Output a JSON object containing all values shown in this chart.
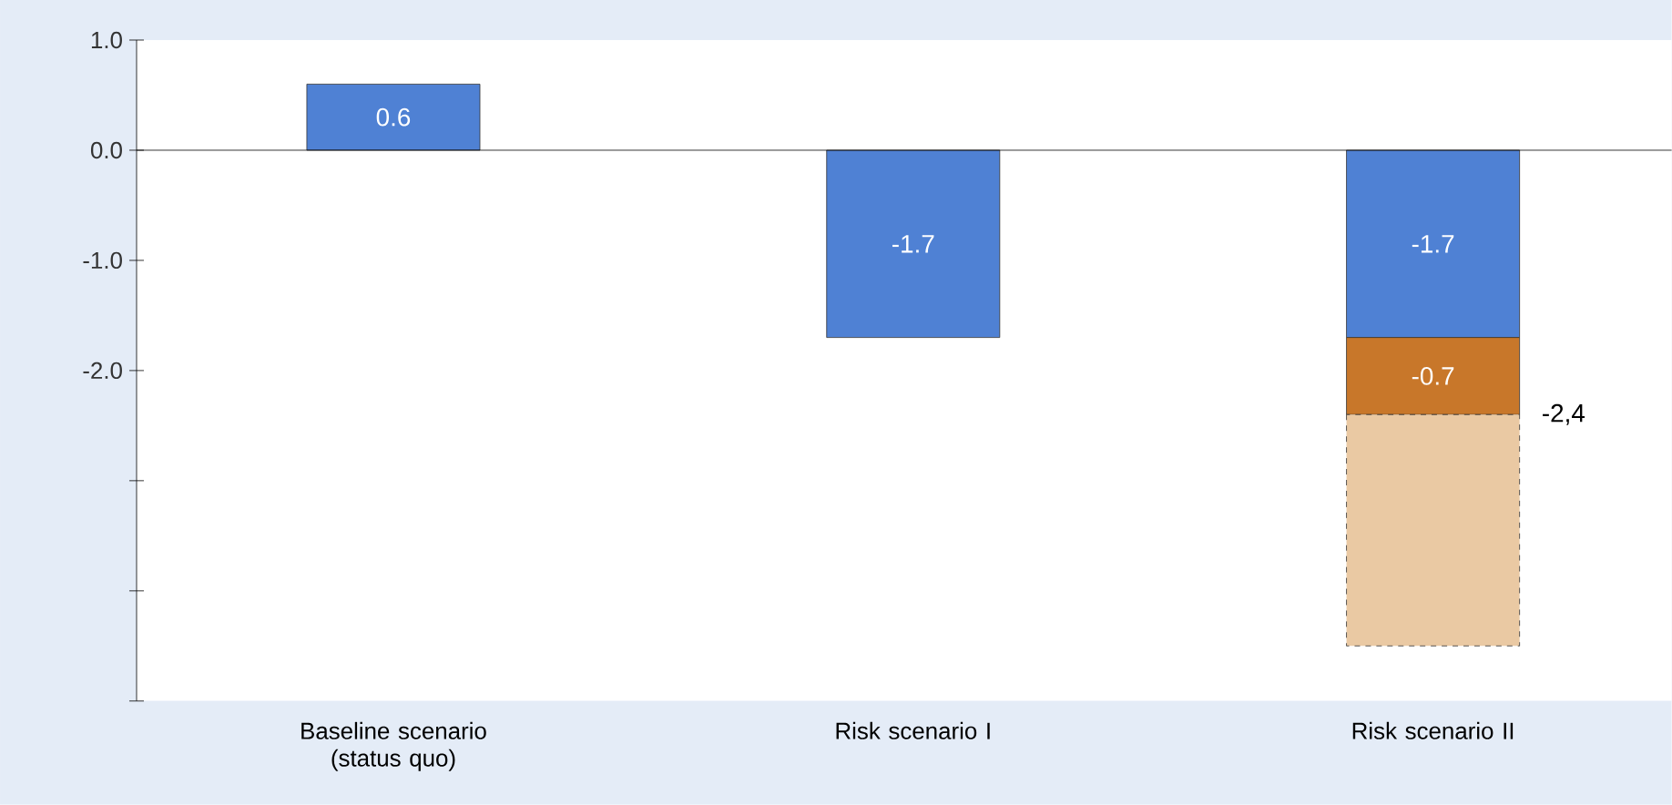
{
  "chart_data": {
    "type": "bar",
    "stacked": true,
    "categories": [
      "Baseline scenario (status quo)",
      "Risk scenario I",
      "Risk scenario II"
    ],
    "series": [
      {
        "color": "#4f81d4",
        "values": [
          0.6,
          -1.7,
          -1.7
        ],
        "value_labels": [
          "0.6",
          "-1.7",
          "-1.7"
        ]
      },
      {
        "color": "#c8772a",
        "values": [
          null,
          null,
          -0.7
        ],
        "value_labels": [
          null,
          null,
          "-0.7"
        ]
      },
      {
        "color": "#eac9a3",
        "values": [
          null,
          null,
          -2.1
        ],
        "line_style": "dashed"
      }
    ],
    "ylim": [
      -5,
      1
    ],
    "yticks": [
      {
        "value": 1,
        "label": "1.0"
      },
      {
        "value": 0,
        "label": "0.0"
      },
      {
        "value": -1,
        "label": "-1.0"
      },
      {
        "value": -2,
        "label": "-2.0"
      },
      {
        "value": -3,
        "label": null
      },
      {
        "value": -4,
        "label": null
      },
      {
        "value": -5,
        "label": null
      }
    ],
    "annotations": [
      "-2,4"
    ]
  }
}
